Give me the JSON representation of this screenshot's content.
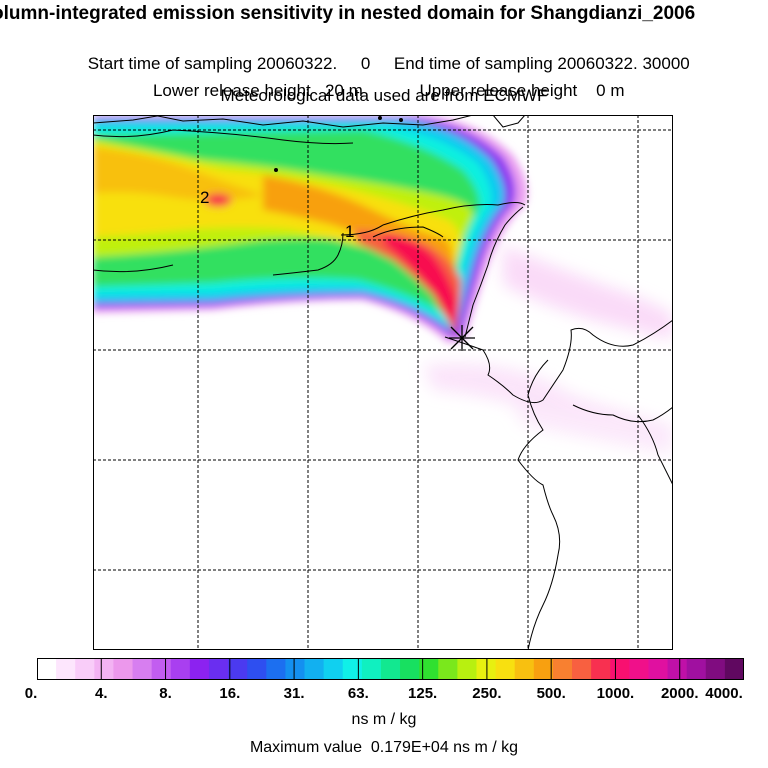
{
  "header": {
    "title": "olumn-integrated emission sensitivity in nested domain for Shangdianzi_2006",
    "start_label": "Start time of sampling 20060322.     0",
    "end_label": "End time of sampling 20060322. 30000",
    "lower_label": "Lower release height   20 m",
    "upper_label": "Upper release height    0 m",
    "met_label": "Meteorological data used are from ECMWF"
  },
  "map": {
    "contour_labels": [
      "2",
      "1"
    ],
    "station_marker": "receptor-cross-icon"
  },
  "colorbar": {
    "ticks": [
      "0.",
      "4.",
      "8.",
      "16.",
      "31.",
      "63.",
      "125.",
      "250.",
      "500.",
      "1000.",
      "2000.",
      "4000."
    ],
    "colors": [
      "#ffffff",
      "#fde6fd",
      "#f9cdf9",
      "#f3b3f3",
      "#ec98ec",
      "#d77ef0",
      "#c25df0",
      "#a93ff0",
      "#8c22f0",
      "#6a2ef0",
      "#4b3af0",
      "#2e4ff0",
      "#1c6ff0",
      "#1490f0",
      "#12b0f0",
      "#10d0f0",
      "#10f0e8",
      "#10f0c0",
      "#12e890",
      "#18e060",
      "#30e030",
      "#7ae81c",
      "#b8f010",
      "#e8f010",
      "#f8e010",
      "#f8c010",
      "#f8a010",
      "#f88030",
      "#f86040",
      "#f83050",
      "#f81070",
      "#f0108a",
      "#e010a0",
      "#c010a8",
      "#a010a0",
      "#800c80",
      "#600860"
    ],
    "units": "ns m / kg",
    "max_label": "Maximum value  0.179E+04 ns m / kg"
  },
  "colors": {
    "low_pink": "#f9d0f6",
    "cyan": "#10f0f0",
    "green": "#38e038",
    "yellow": "#f0f010",
    "orange": "#f8a010",
    "red": "#f81050",
    "purple": "#8c22f0"
  }
}
